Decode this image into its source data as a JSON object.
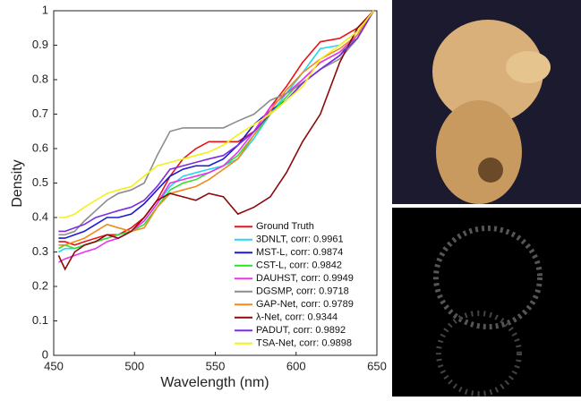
{
  "chart_data": {
    "type": "line",
    "x_label": "Wavelength (nm)",
    "y_label": "Density",
    "x": [
      453,
      457,
      463,
      469,
      476,
      483,
      490,
      498,
      506,
      514,
      522,
      530,
      538,
      546,
      555,
      564,
      574,
      584,
      594,
      604,
      615,
      627,
      638,
      648
    ],
    "series": [
      {
        "name": "Ground Truth",
        "color": "#e8141a",
        "values": [
          0.33,
          0.33,
          0.32,
          0.33,
          0.34,
          0.35,
          0.35,
          0.37,
          0.4,
          0.45,
          0.52,
          0.57,
          0.6,
          0.62,
          0.62,
          0.62,
          0.65,
          0.72,
          0.78,
          0.85,
          0.91,
          0.92,
          0.95,
          1.0
        ]
      },
      {
        "name": "3DNLT, corr: 0.9961",
        "color": "#22d8f0",
        "values": [
          0.3,
          0.31,
          0.31,
          0.32,
          0.33,
          0.34,
          0.35,
          0.36,
          0.39,
          0.44,
          0.49,
          0.52,
          0.53,
          0.54,
          0.55,
          0.57,
          0.63,
          0.7,
          0.76,
          0.82,
          0.89,
          0.9,
          0.94,
          1.0
        ]
      },
      {
        "name": "MST-L, corr: 0.9874",
        "color": "#1a1ad0",
        "values": [
          0.34,
          0.34,
          0.35,
          0.36,
          0.38,
          0.4,
          0.4,
          0.41,
          0.44,
          0.48,
          0.52,
          0.54,
          0.55,
          0.55,
          0.57,
          0.61,
          0.67,
          0.71,
          0.74,
          0.79,
          0.83,
          0.87,
          0.93,
          1.0
        ]
      },
      {
        "name": "CST-L, corr: 0.9842",
        "color": "#2ee02e",
        "values": [
          0.31,
          0.32,
          0.31,
          0.32,
          0.33,
          0.34,
          0.35,
          0.36,
          0.38,
          0.43,
          0.48,
          0.5,
          0.51,
          0.53,
          0.55,
          0.58,
          0.64,
          0.7,
          0.75,
          0.8,
          0.85,
          0.88,
          0.92,
          1.0
        ]
      },
      {
        "name": "DAUHST, corr: 0.9949",
        "color": "#f030f0",
        "values": [
          0.27,
          0.28,
          0.29,
          0.3,
          0.31,
          0.33,
          0.34,
          0.36,
          0.39,
          0.44,
          0.5,
          0.51,
          0.52,
          0.53,
          0.55,
          0.59,
          0.65,
          0.72,
          0.76,
          0.8,
          0.85,
          0.88,
          0.93,
          1.0
        ]
      },
      {
        "name": "DGSMP, corr: 0.9718",
        "color": "#8c8c8c",
        "values": [
          0.35,
          0.35,
          0.36,
          0.39,
          0.42,
          0.45,
          0.47,
          0.48,
          0.5,
          0.58,
          0.65,
          0.66,
          0.66,
          0.66,
          0.66,
          0.68,
          0.7,
          0.74,
          0.76,
          0.79,
          0.83,
          0.86,
          0.92,
          1.0
        ]
      },
      {
        "name": "GAP-Net, corr: 0.9789",
        "color": "#f08a1e",
        "values": [
          0.32,
          0.32,
          0.33,
          0.34,
          0.36,
          0.38,
          0.37,
          0.36,
          0.37,
          0.43,
          0.47,
          0.48,
          0.49,
          0.51,
          0.54,
          0.57,
          0.64,
          0.71,
          0.77,
          0.82,
          0.86,
          0.89,
          0.93,
          1.0
        ]
      },
      {
        "name": "λ-Net, corr: 0.9344",
        "color": "#8b0a0a",
        "values": [
          0.29,
          0.25,
          0.3,
          0.32,
          0.33,
          0.35,
          0.34,
          0.36,
          0.4,
          0.45,
          0.47,
          0.46,
          0.45,
          0.47,
          0.46,
          0.41,
          0.43,
          0.46,
          0.53,
          0.62,
          0.7,
          0.85,
          0.95,
          1.0
        ]
      },
      {
        "name": "PADUT, corr: 0.9892",
        "color": "#7a2ee0",
        "values": [
          0.36,
          0.36,
          0.37,
          0.38,
          0.4,
          0.41,
          0.42,
          0.43,
          0.45,
          0.49,
          0.54,
          0.55,
          0.56,
          0.57,
          0.58,
          0.61,
          0.65,
          0.7,
          0.74,
          0.79,
          0.83,
          0.87,
          0.92,
          1.0
        ]
      },
      {
        "name": "TSA-Net, corr: 0.9898",
        "color": "#f5f01a",
        "values": [
          0.4,
          0.4,
          0.41,
          0.43,
          0.45,
          0.47,
          0.48,
          0.49,
          0.52,
          0.55,
          0.56,
          0.57,
          0.58,
          0.59,
          0.61,
          0.64,
          0.67,
          0.7,
          0.74,
          0.78,
          0.86,
          0.9,
          0.94,
          1.0
        ]
      }
    ],
    "xlim": [
      450,
      650
    ],
    "ylim": [
      0,
      1
    ],
    "xticks": [
      450,
      500,
      550,
      600,
      650
    ],
    "yticks": [
      0,
      0.1,
      0.2,
      0.3,
      0.4,
      0.5,
      0.6,
      0.7,
      0.8,
      0.9,
      1
    ],
    "grid": false,
    "legend": "lower right"
  }
}
